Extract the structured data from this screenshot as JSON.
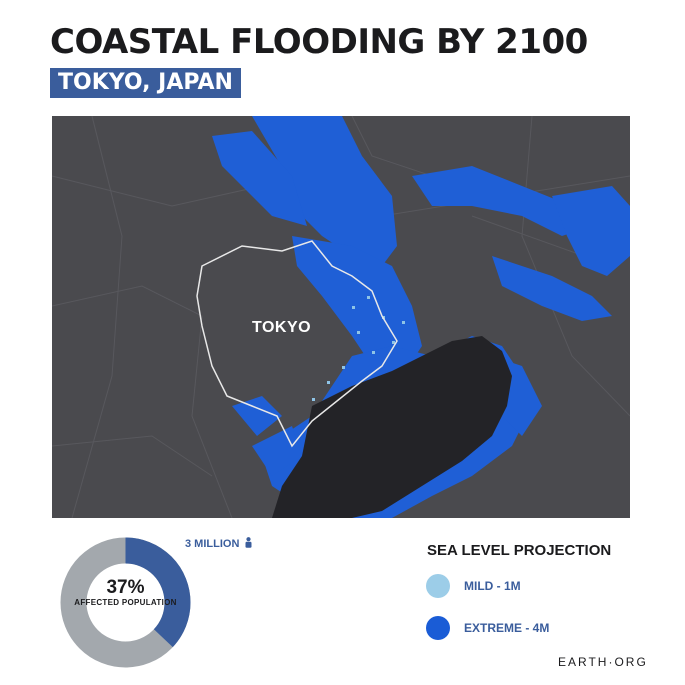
{
  "header": {
    "title": "COASTAL FLOODING BY 2100",
    "subtitle": "TOKYO, JAPAN"
  },
  "map": {
    "city_label": "TOKYO",
    "colors": {
      "land": "#4a4a4e",
      "water": "#232327",
      "flood_extreme": "#1f5fd6",
      "flood_mild": "#8fc4e6",
      "boundary": "#e8e8e8"
    }
  },
  "stats": {
    "affected_percent": "37%",
    "affected_label": "AFFECTED POPULATION",
    "affected_fraction": 0.37,
    "population_affected": "3 MILLION",
    "colors": {
      "affected": "#3a5d9c",
      "remaining": "#a3a8ad"
    }
  },
  "legend": {
    "title": "SEA LEVEL PROJECTION",
    "items": [
      {
        "label": "MILD - 1M",
        "color": "#9ccde8"
      },
      {
        "label": "EXTREME - 4M",
        "color": "#1a5cd6"
      }
    ]
  },
  "brand": "EARTH·ORG"
}
